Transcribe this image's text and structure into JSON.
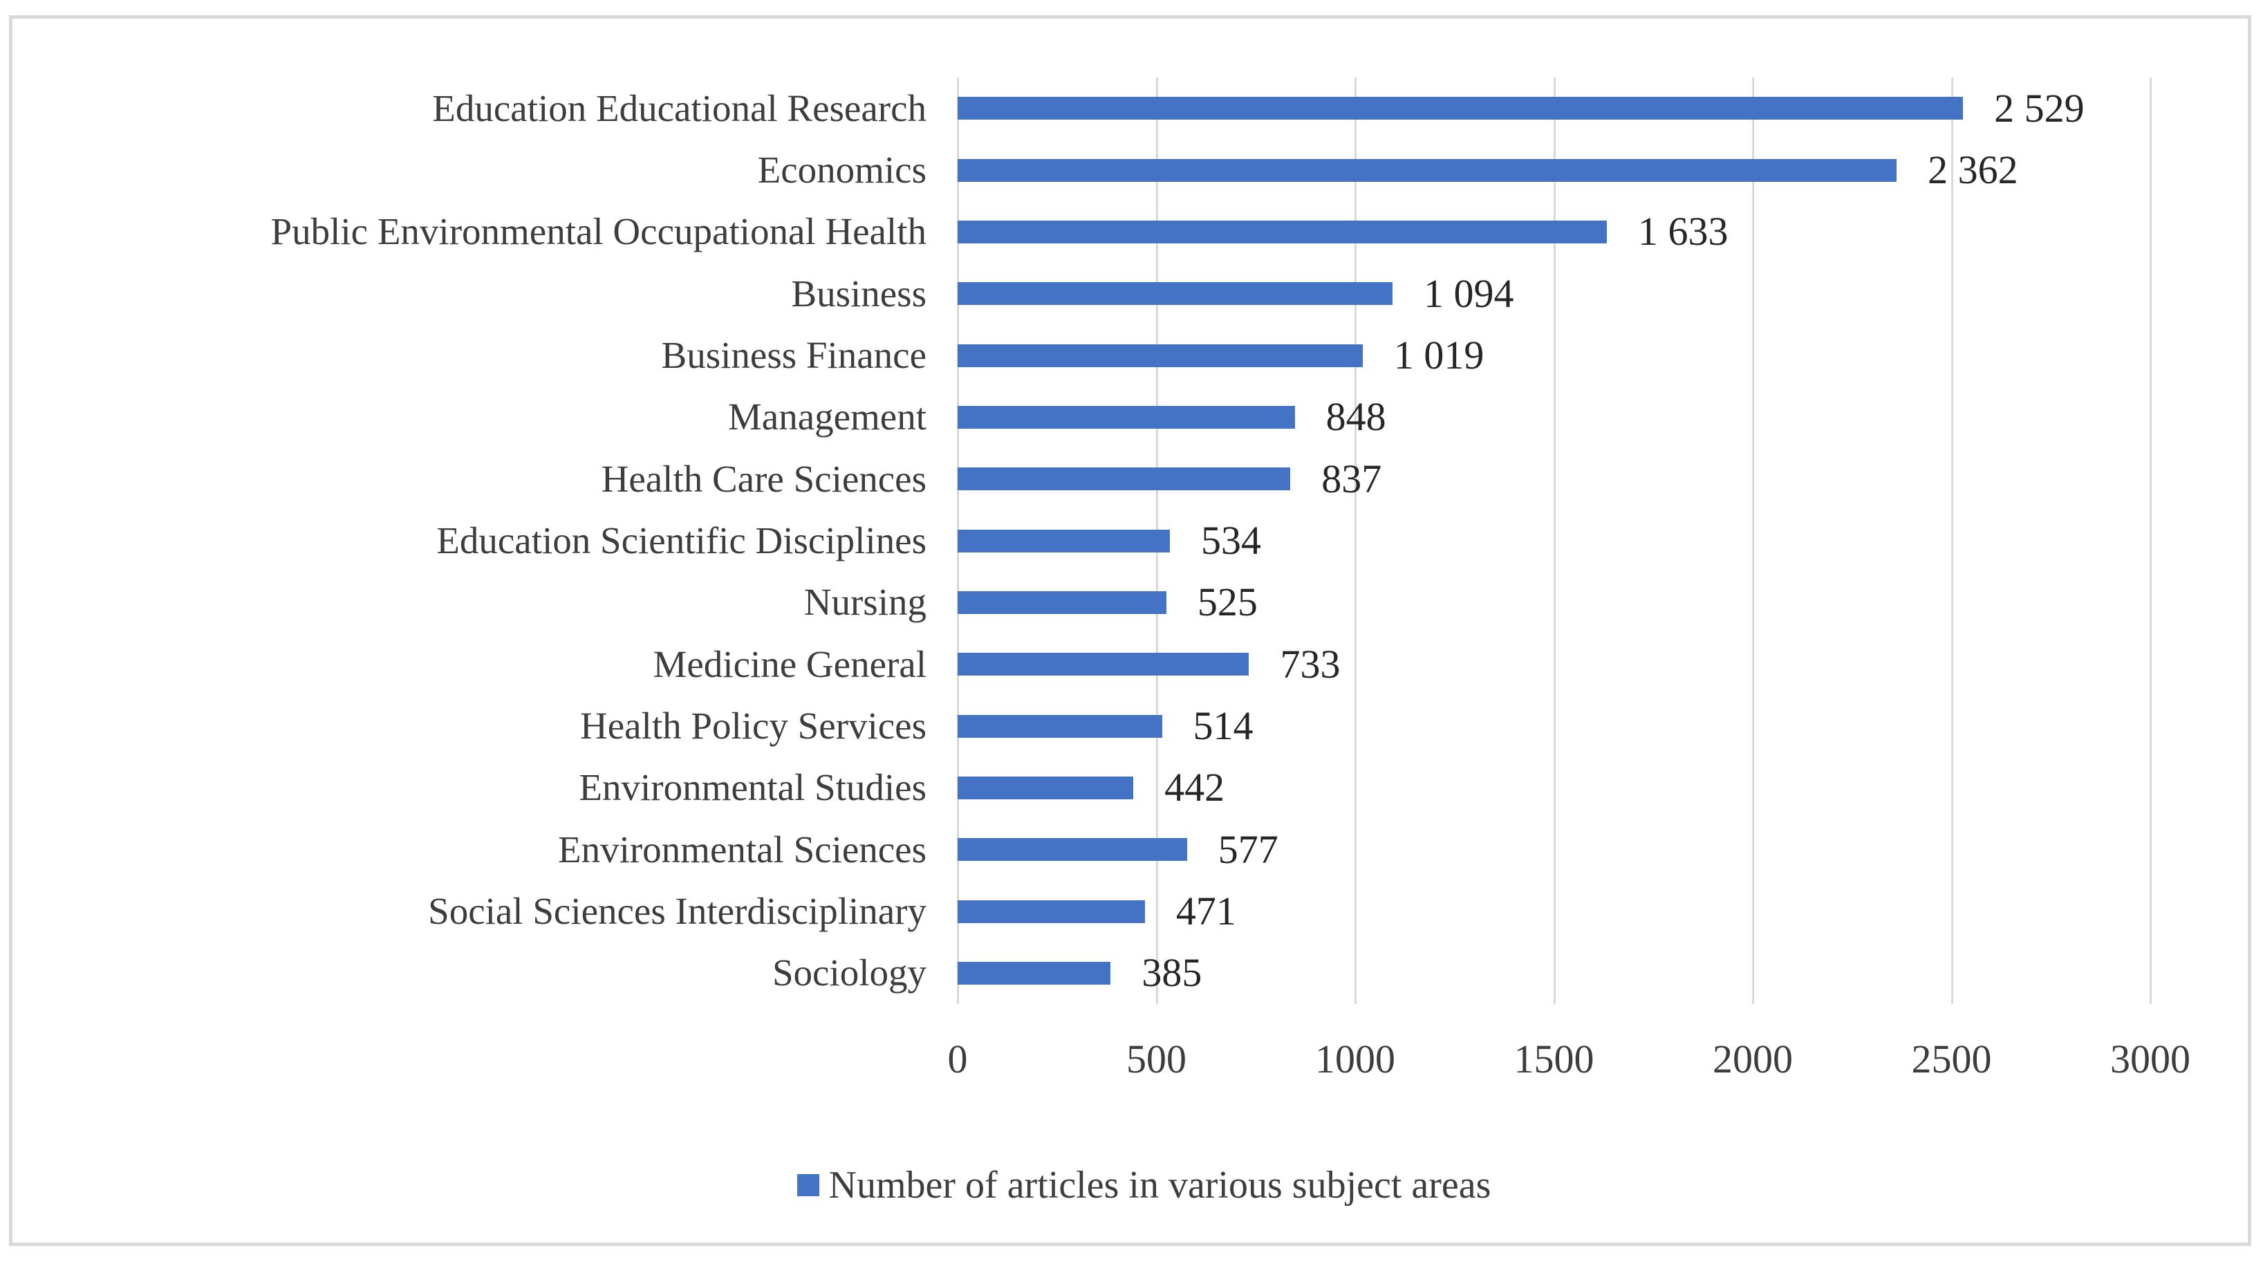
{
  "chart_data": {
    "type": "bar",
    "orientation": "horizontal",
    "title": "",
    "xlabel": "",
    "ylabel": "",
    "categories": [
      "Education Educational Research",
      "Economics",
      "Public Environmental Occupational Health",
      "Business",
      "Business Finance",
      "Management",
      "Health Care Sciences",
      "Education Scientific Disciplines",
      "Nursing",
      "Medicine General",
      "Health Policy Services",
      "Environmental Studies",
      "Environmental Sciences",
      "Social Sciences Interdisciplinary",
      "Sociology"
    ],
    "values": [
      2529,
      2362,
      1633,
      1094,
      1019,
      848,
      837,
      534,
      525,
      733,
      514,
      442,
      577,
      471,
      385
    ],
    "value_labels": [
      "2 529",
      "2 362",
      "1 633",
      "1 094",
      "1 019",
      "848",
      "837",
      "534",
      "525",
      "733",
      "514",
      "442",
      "577",
      "471",
      "385"
    ],
    "xlim": [
      0,
      3000
    ],
    "xticks": [
      0,
      500,
      1000,
      1500,
      2000,
      2500,
      3000
    ],
    "xtick_labels": [
      "0",
      "500",
      "1000",
      "1500",
      "2000",
      "2500",
      "3000"
    ],
    "grid": "vertical-only",
    "legend": {
      "position": "bottom-center",
      "entries": [
        {
          "label": "Number of articles in various subject areas",
          "color": "#4472C4"
        }
      ]
    },
    "colors": {
      "bar": "#4472C4",
      "gridline": "#D9D9D9",
      "frame_border": "#D9D9D9",
      "category_text": "#3D3D3D",
      "value_text": "#262626",
      "background": "#FFFFFF"
    }
  }
}
